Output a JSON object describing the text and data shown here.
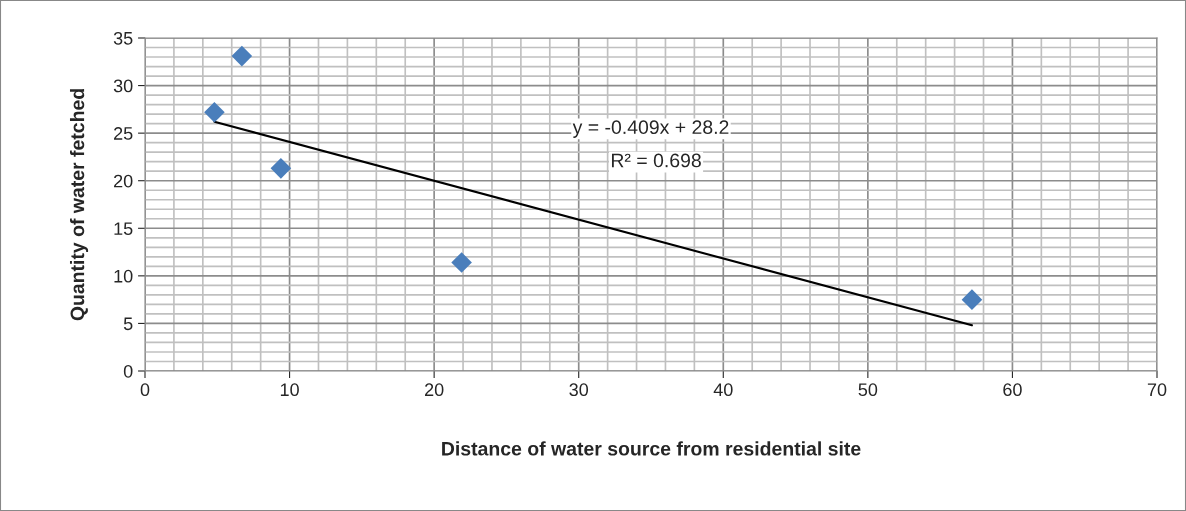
{
  "chart_data": {
    "type": "scatter",
    "xlabel": "Distance of water source from residential site",
    "ylabel": "Quantity of water fetched",
    "marker": "diamond",
    "series": [
      {
        "color": "#4a7ebb",
        "x": [
          4.8,
          6.7,
          9.4,
          21.9,
          57.2
        ],
        "values": [
          27.2,
          33.1,
          21.3,
          11.4,
          7.5
        ]
      },
      {
        "type": "line",
        "color": "#000000",
        "marker": "none",
        "x": [
          4.8,
          57.2
        ],
        "values": [
          26.2,
          4.8
        ]
      }
    ],
    "annotations": [
      "y = -0.409x + 28.2",
      "R² = 0.698"
    ],
    "xlim": [
      0,
      70
    ],
    "xticks": [
      0,
      10,
      20,
      30,
      40,
      50,
      60,
      70
    ],
    "ylim": [
      0,
      35
    ],
    "yticks": [
      0,
      5,
      10,
      15,
      20,
      25,
      30,
      35
    ],
    "grid": true,
    "legend": false
  }
}
